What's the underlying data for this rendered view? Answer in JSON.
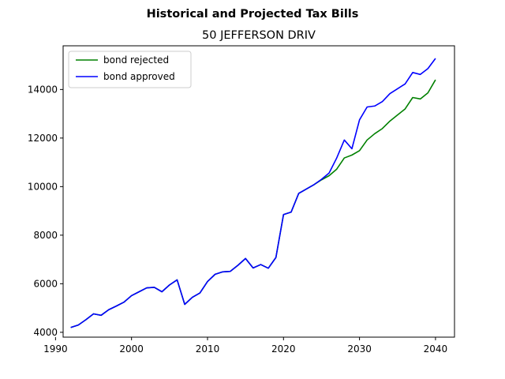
{
  "chart_data": {
    "type": "line",
    "suptitle": "Historical and Projected Tax Bills",
    "title": "50 JEFFERSON DRIV",
    "xlabel": "",
    "ylabel": "",
    "xlim": [
      1991,
      2042.5
    ],
    "ylim": [
      3800,
      15800
    ],
    "xticks": [
      1990,
      2000,
      2010,
      2020,
      2030,
      2040
    ],
    "yticks": [
      4000,
      6000,
      8000,
      10000,
      12000,
      14000
    ],
    "grid": false,
    "legend_position": "top-left",
    "x": [
      1992,
      1993,
      1994,
      1995,
      1996,
      1997,
      1998,
      1999,
      2000,
      2001,
      2002,
      2003,
      2004,
      2005,
      2006,
      2007,
      2008,
      2009,
      2010,
      2011,
      2012,
      2013,
      2014,
      2015,
      2016,
      2017,
      2018,
      2019,
      2020,
      2021,
      2022,
      2023,
      2024,
      2025,
      2026,
      2027,
      2028,
      2029,
      2030,
      2031,
      2032,
      2033,
      2034,
      2035,
      2036,
      2037,
      2038,
      2039,
      2040
    ],
    "series": [
      {
        "name": "bond rejected",
        "color": "#008000",
        "values": [
          4200,
          4300,
          4520,
          4760,
          4700,
          4930,
          5080,
          5240,
          5510,
          5670,
          5830,
          5850,
          5670,
          5950,
          6160,
          5150,
          5440,
          5620,
          6090,
          6390,
          6490,
          6510,
          6760,
          7040,
          6650,
          6790,
          6640,
          7080,
          8850,
          8950,
          9720,
          9900,
          10080,
          10280,
          10450,
          10720,
          11180,
          11300,
          11480,
          11920,
          12180,
          12390,
          12700,
          12950,
          13200,
          13670,
          13610,
          13860,
          14400
        ]
      },
      {
        "name": "bond approved",
        "color": "#0000ff",
        "values": [
          4200,
          4300,
          4520,
          4760,
          4700,
          4930,
          5080,
          5240,
          5510,
          5670,
          5830,
          5850,
          5670,
          5950,
          6160,
          5150,
          5440,
          5620,
          6090,
          6390,
          6490,
          6510,
          6760,
          7040,
          6650,
          6790,
          6640,
          7080,
          8850,
          8950,
          9720,
          9900,
          10080,
          10300,
          10560,
          11180,
          11920,
          11560,
          12750,
          13280,
          13320,
          13500,
          13830,
          14030,
          14230,
          14700,
          14620,
          14860,
          15280
        ]
      }
    ]
  },
  "colors": {
    "axes": "#000000",
    "legend_border": "#cccccc",
    "background": "#ffffff"
  }
}
